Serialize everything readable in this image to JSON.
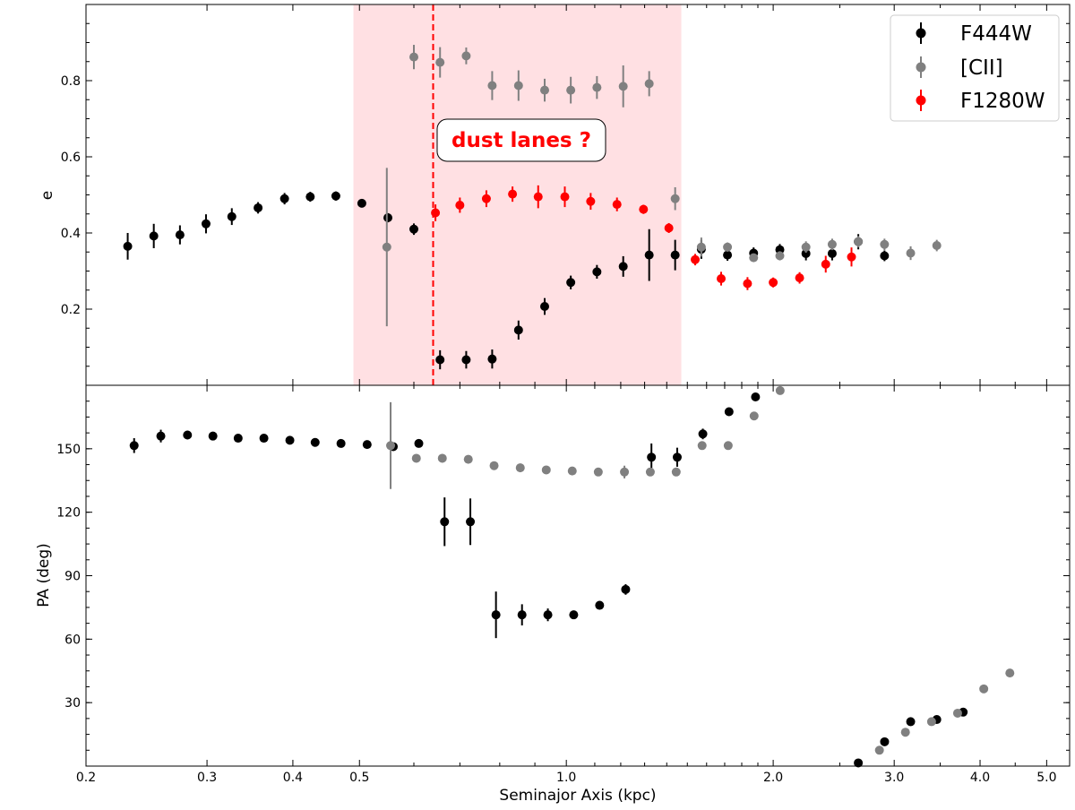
{
  "chart_data": [
    {
      "type": "scatter",
      "panel": "top",
      "xlabel": "",
      "ylabel": "e",
      "xscale": "log",
      "xlim": [
        0.2,
        5.4
      ],
      "ylim": [
        0.0,
        1.0
      ],
      "yticks": [
        0.2,
        0.4,
        0.6,
        0.8
      ],
      "ytick_labels": [
        "0.2",
        "0.4",
        "0.6",
        "0.8"
      ],
      "shaded_region": {
        "x_start": 0.49,
        "x_end": 1.47,
        "color": "#ffd6d9"
      },
      "vline": {
        "x": 0.64,
        "color": "#ff0000",
        "style": "dashed"
      },
      "annotation": {
        "text": "dust lanes ?",
        "x": 0.8,
        "y": 0.645,
        "color": "#ff0000"
      },
      "legend": {
        "location": "top-right",
        "entries": [
          {
            "label": "F444W",
            "color": "#000000"
          },
          {
            "label": "[CII]",
            "color": "#808080"
          },
          {
            "label": "F1280W",
            "color": "#ff0000"
          }
        ]
      },
      "series": [
        {
          "name": "F444W",
          "color": "#000000",
          "points": [
            [
              0.23,
              0.365,
              0.035
            ],
            [
              0.251,
              0.392,
              0.032
            ],
            [
              0.274,
              0.395,
              0.025
            ],
            [
              0.299,
              0.424,
              0.025
            ],
            [
              0.326,
              0.443,
              0.022
            ],
            [
              0.356,
              0.466,
              0.015
            ],
            [
              0.389,
              0.49,
              0.015
            ],
            [
              0.424,
              0.495,
              0.013
            ],
            [
              0.462,
              0.497,
              0.012
            ],
            [
              0.504,
              0.478,
              0.01
            ],
            [
              0.55,
              0.44,
              0.012
            ],
            [
              0.6,
              0.41,
              0.015
            ],
            [
              0.655,
              0.067,
              0.025
            ],
            [
              0.715,
              0.067,
              0.023
            ],
            [
              0.78,
              0.069,
              0.025
            ],
            [
              0.852,
              0.145,
              0.025
            ],
            [
              0.93,
              0.207,
              0.022
            ],
            [
              1.015,
              0.27,
              0.018
            ],
            [
              1.108,
              0.298,
              0.018
            ],
            [
              1.21,
              0.312,
              0.027
            ],
            [
              1.32,
              0.342,
              0.068
            ],
            [
              1.44,
              0.342,
              0.04
            ],
            [
              1.572,
              0.357,
              0.025
            ],
            [
              1.716,
              0.342,
              0.015
            ],
            [
              1.873,
              0.347,
              0.015
            ],
            [
              2.045,
              0.356,
              0.015
            ],
            [
              2.232,
              0.346,
              0.018
            ],
            [
              2.437,
              0.346,
              0.018
            ],
            [
              2.66,
              0.377,
              0.02
            ],
            [
              2.904,
              0.34,
              0.014
            ]
          ]
        },
        {
          "name": "[CII]",
          "color": "#808080",
          "points": [
            [
              0.548,
              0.363,
              0.208
            ],
            [
              0.6,
              0.862,
              0.032
            ],
            [
              0.655,
              0.848,
              0.04
            ],
            [
              0.715,
              0.865,
              0.022
            ],
            [
              0.78,
              0.787,
              0.038
            ],
            [
              0.852,
              0.787,
              0.04
            ],
            [
              0.93,
              0.775,
              0.03
            ],
            [
              1.015,
              0.775,
              0.035
            ],
            [
              1.108,
              0.782,
              0.03
            ],
            [
              1.21,
              0.785,
              0.055
            ],
            [
              1.32,
              0.792,
              0.033
            ],
            [
              1.44,
              0.49,
              0.03
            ],
            [
              1.572,
              0.363,
              0.025
            ],
            [
              1.716,
              0.363,
              0.012
            ],
            [
              1.873,
              0.335,
              0.01
            ],
            [
              2.045,
              0.34,
              0.012
            ],
            [
              2.232,
              0.363,
              0.015
            ],
            [
              2.437,
              0.37,
              0.015
            ],
            [
              2.66,
              0.377,
              0.015
            ],
            [
              2.904,
              0.37,
              0.015
            ],
            [
              3.17,
              0.347,
              0.018
            ],
            [
              3.46,
              0.367,
              0.015
            ]
          ]
        },
        {
          "name": "F1280W",
          "color": "#ff0000",
          "points": [
            [
              0.645,
              0.453,
              0.022
            ],
            [
              0.7,
              0.473,
              0.02
            ],
            [
              0.765,
              0.49,
              0.022
            ],
            [
              0.835,
              0.502,
              0.02
            ],
            [
              0.91,
              0.495,
              0.03
            ],
            [
              0.995,
              0.495,
              0.027
            ],
            [
              1.085,
              0.483,
              0.022
            ],
            [
              1.185,
              0.475,
              0.018
            ],
            [
              1.295,
              0.462,
              0.012
            ],
            [
              1.41,
              0.413,
              0.013
            ],
            [
              1.54,
              0.33,
              0.015
            ],
            [
              1.68,
              0.28,
              0.018
            ],
            [
              1.835,
              0.267,
              0.017
            ],
            [
              2.0,
              0.27,
              0.013
            ],
            [
              2.185,
              0.282,
              0.015
            ],
            [
              2.385,
              0.318,
              0.022
            ],
            [
              2.6,
              0.337,
              0.025
            ]
          ]
        }
      ]
    },
    {
      "type": "scatter",
      "panel": "bottom",
      "xlabel": "Seminajor Axis (kpc)",
      "ylabel": "PA (deg)",
      "xscale": "log",
      "xlim": [
        0.2,
        5.4
      ],
      "ylim": [
        0,
        180
      ],
      "xticks": [
        0.2,
        0.3,
        0.4,
        0.5,
        1.0,
        2.0,
        3.0,
        4.0,
        5.0
      ],
      "xtick_labels": [
        "0.2",
        "0.3",
        "0.4",
        "0.5",
        "1.0",
        "2.0",
        "3.0",
        "4.0",
        "5.0"
      ],
      "yticks": [
        30,
        60,
        90,
        120,
        150
      ],
      "ytick_labels": [
        "30",
        "60",
        "90",
        "120",
        "150"
      ],
      "series": [
        {
          "name": "F444W",
          "color": "#000000",
          "points": [
            [
              0.235,
              151.5,
              3.5
            ],
            [
              0.257,
              156,
              3.0
            ],
            [
              0.281,
              156.5,
              2.0
            ],
            [
              0.306,
              156,
              2.0
            ],
            [
              0.333,
              155,
              1.5
            ],
            [
              0.363,
              155,
              1.0
            ],
            [
              0.396,
              154,
              1.0
            ],
            [
              0.431,
              153,
              1.0
            ],
            [
              0.47,
              152.5,
              1.0
            ],
            [
              0.513,
              152,
              1.0
            ],
            [
              0.56,
              151,
              1.0
            ],
            [
              0.61,
              152.5,
              1.0
            ],
            [
              0.665,
              115.5,
              11.5
            ],
            [
              0.725,
              115.5,
              11.0
            ],
            [
              0.79,
              71.5,
              11.0
            ],
            [
              0.862,
              71.5,
              5.0
            ],
            [
              0.94,
              71.5,
              3.0
            ],
            [
              1.025,
              71.5,
              2.0
            ],
            [
              1.118,
              76,
              2.0
            ],
            [
              1.22,
              83.5,
              2.5
            ],
            [
              1.33,
              146,
              6.5
            ],
            [
              1.45,
              146,
              4.5
            ],
            [
              1.58,
              157,
              2.5
            ],
            [
              1.725,
              167.5,
              1.5
            ],
            [
              1.885,
              174.5,
              1.0
            ],
            [
              2.66,
              1.5,
              1.0
            ],
            [
              2.905,
              11.5,
              2.0
            ],
            [
              3.17,
              21,
              2.0
            ],
            [
              3.46,
              22,
              1.0
            ],
            [
              3.78,
              25.5,
              1.0
            ]
          ]
        },
        {
          "name": "[CII]",
          "color": "#808080",
          "points": [
            [
              0.555,
              151.5,
              20.5
            ],
            [
              0.605,
              145.5,
              1.5
            ],
            [
              0.66,
              145.5,
              2.0
            ],
            [
              0.72,
              145,
              1.0
            ],
            [
              0.785,
              142,
              2.0
            ],
            [
              0.857,
              141,
              2.0
            ],
            [
              0.935,
              140,
              1.0
            ],
            [
              1.02,
              139.5,
              1.5
            ],
            [
              1.113,
              139,
              1.0
            ],
            [
              1.215,
              139,
              3.0
            ],
            [
              1.325,
              139,
              1.0
            ],
            [
              1.445,
              139,
              1.0
            ],
            [
              1.576,
              151.5,
              1.0
            ],
            [
              1.72,
              151.5,
              1.0
            ],
            [
              1.876,
              165.5,
              1.0
            ],
            [
              2.047,
              177.5,
              1.0
            ],
            [
              2.855,
              7.5,
              1.0
            ],
            [
              3.115,
              16,
              1.0
            ],
            [
              3.4,
              21,
              1.0
            ],
            [
              3.71,
              25,
              1.0
            ],
            [
              4.05,
              36.5,
              1.0
            ],
            [
              4.42,
              44,
              1.0
            ]
          ]
        }
      ]
    }
  ]
}
